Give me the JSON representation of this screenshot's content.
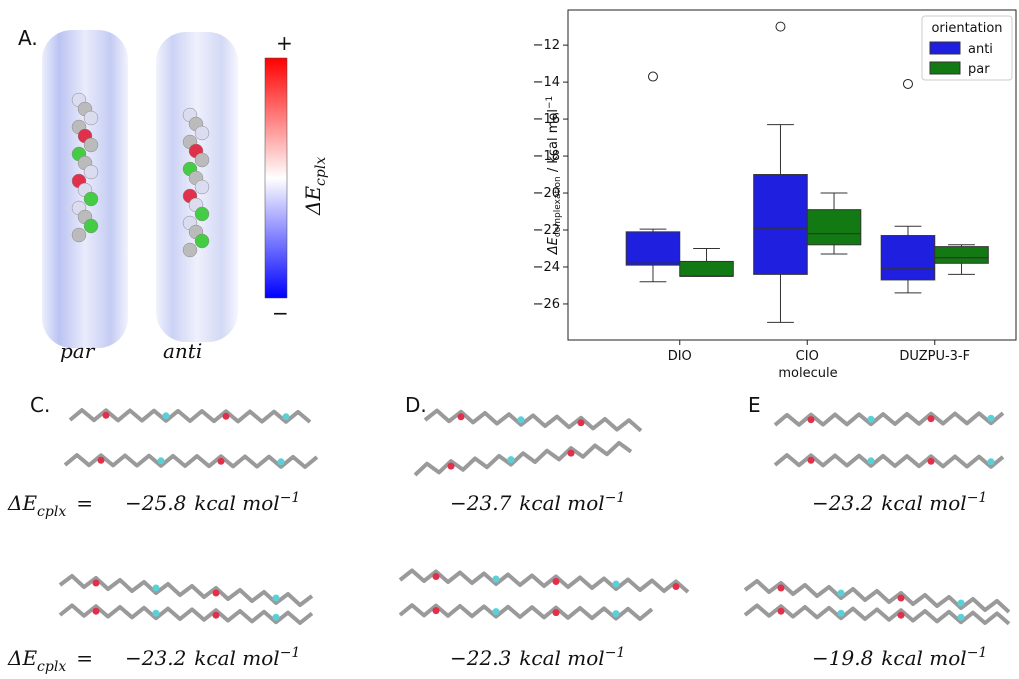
{
  "panel_a": {
    "label": "A.",
    "plus": "+",
    "minus": "−",
    "colorbar_symbol": "ΔE",
    "colorbar_subscript": "cplx",
    "left_name": "par",
    "right_name": "anti"
  },
  "chart_data": {
    "type": "box",
    "x_label": "molecule",
    "y_label": {
      "symbol": "ΔE",
      "subscript": "complexation",
      "unit": " / kcal mol",
      "superscript": "−1"
    },
    "categories": [
      "DIO",
      "CIO",
      "DUZPU-3-F"
    ],
    "legend_title": "orientation",
    "legend": "upper right",
    "series": [
      {
        "name": "anti",
        "color": "#1f1fe0",
        "whislo": [
          -24.8,
          -27.0,
          -25.4
        ],
        "q1": [
          -23.9,
          -24.4,
          -24.7
        ],
        "med": [
          -23.8,
          -21.9,
          -24.1
        ],
        "q3": [
          -22.1,
          -19.0,
          -22.3
        ],
        "whishi": [
          -21.95,
          -16.3,
          -21.8
        ],
        "outliers": [
          [
            -13.7
          ],
          [
            -11.0
          ],
          [
            -14.1
          ]
        ]
      },
      {
        "name": "par",
        "color": "#137a13",
        "whislo": [
          -24.5,
          -23.3,
          -24.4
        ],
        "q1": [
          -24.5,
          -22.8,
          -23.8
        ],
        "med": [
          -24.5,
          -22.2,
          -23.5
        ],
        "q3": [
          -23.7,
          -20.9,
          -22.9
        ],
        "whishi": [
          -23.0,
          -20.0,
          -22.8
        ],
        "outliers": [
          [],
          [],
          []
        ]
      }
    ],
    "ylim": [
      -27.95,
      -10.1
    ],
    "yticks": [
      {
        "value": -26,
        "label": "−26"
      },
      {
        "value": -24,
        "label": "−24"
      },
      {
        "value": -22,
        "label": "−22"
      },
      {
        "value": -20,
        "label": "−20"
      },
      {
        "value": -18,
        "label": "−18"
      },
      {
        "value": -16,
        "label": "−16"
      },
      {
        "value": -14,
        "label": "−14"
      },
      {
        "value": -12,
        "label": "−12"
      }
    ]
  },
  "delta_label": {
    "symbol": "ΔE",
    "subscript": "cplx",
    "equals": "="
  },
  "energy_unit": "kcal mol",
  "energy_power": "−1",
  "panels": [
    {
      "label": "C.",
      "energies": [
        "−25.8",
        "−23.2"
      ]
    },
    {
      "label": "D.",
      "energies": [
        "−23.7",
        "−22.3"
      ]
    },
    {
      "label": "E",
      "energies": [
        "−23.2",
        "−19.8"
      ]
    }
  ]
}
